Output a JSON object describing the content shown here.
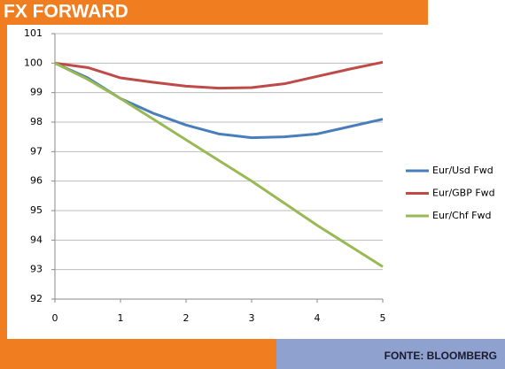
{
  "chart_data": {
    "type": "line",
    "title": "FX FORWARD",
    "source": "FONTE: BLOOMBERG",
    "x": [
      0,
      0.5,
      1,
      1.5,
      2,
      2.5,
      3,
      3.5,
      4,
      4.5,
      5
    ],
    "xlim": [
      0,
      5
    ],
    "xticks": [
      0,
      1,
      2,
      3,
      4,
      5
    ],
    "ylim": [
      92,
      101
    ],
    "yticks": [
      92,
      93,
      94,
      95,
      96,
      97,
      98,
      99,
      100,
      101
    ],
    "grid": true,
    "legend": "right",
    "series": [
      {
        "name": "Eur/Usd Fwd",
        "color": "#4a7ebb",
        "values": [
          100,
          99.5,
          98.8,
          98.3,
          97.9,
          97.6,
          97.47,
          97.5,
          97.6,
          97.85,
          98.1
        ]
      },
      {
        "name": "Eur/GBP Fwd",
        "color": "#be4b48",
        "values": [
          100,
          99.85,
          99.5,
          99.35,
          99.22,
          99.15,
          99.17,
          99.3,
          99.55,
          99.8,
          100.03
        ]
      },
      {
        "name": "Eur/Chf Fwd",
        "color": "#98b954",
        "values": [
          100,
          99.45,
          98.8,
          98.1,
          97.4,
          96.7,
          96.0,
          95.25,
          94.5,
          93.8,
          93.1
        ]
      }
    ]
  }
}
